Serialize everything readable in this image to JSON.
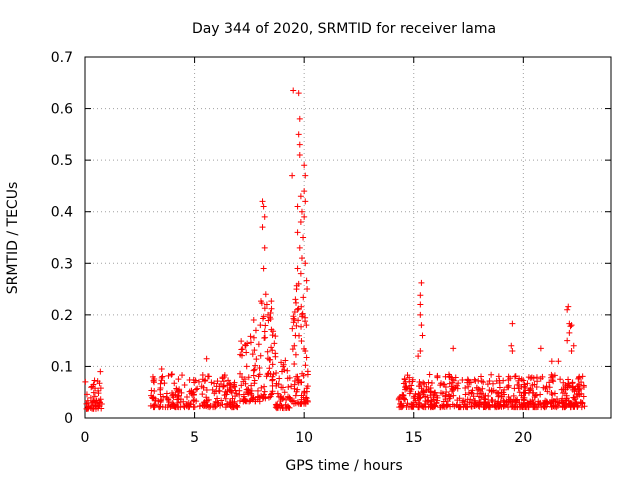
{
  "chart_data": {
    "type": "scatter",
    "title": "Day 344 of 2020, SRMTID for receiver lama",
    "xlabel": "GPS time / hours",
    "ylabel": "SRMTID / TECUs",
    "xlim": [
      0,
      24
    ],
    "ylim": [
      0,
      0.7
    ],
    "x_ticks": [
      0,
      5,
      10,
      15,
      20
    ],
    "x_tick_labels": [
      "0",
      "5",
      "10",
      "15",
      "20"
    ],
    "y_ticks": [
      0,
      0.1,
      0.2,
      0.3,
      0.4,
      0.5,
      0.6,
      0.7
    ],
    "y_tick_labels": [
      "0",
      "0.1",
      "0.2",
      "0.3",
      "0.4",
      "0.5",
      "0.6",
      "0.7"
    ],
    "grid": true,
    "marker": "+",
    "color": "#ff0000",
    "series": [
      {
        "name": "SRMTID",
        "segments": [
          {
            "x_start": 0.0,
            "x_end": 0.8,
            "base": 0.03,
            "spread": 0.035,
            "density": 60
          },
          {
            "x_start": 2.85,
            "x_end": 2.95,
            "base": 0.0,
            "spread": 0.002,
            "density": 4
          },
          {
            "x_start": 3.0,
            "x_end": 7.0,
            "base": 0.035,
            "spread": 0.04,
            "density": 55
          },
          {
            "x_start": 7.0,
            "x_end": 8.0,
            "base": 0.06,
            "spread": 0.08,
            "density": 70
          },
          {
            "x_start": 8.0,
            "x_end": 8.7,
            "base": 0.08,
            "spread": 0.12,
            "density": 80
          },
          {
            "x_start": 8.7,
            "x_end": 9.4,
            "base": 0.04,
            "spread": 0.06,
            "density": 70
          },
          {
            "x_start": 9.4,
            "x_end": 10.2,
            "base": 0.08,
            "spread": 0.15,
            "density": 90
          },
          {
            "x_start": 14.1,
            "x_end": 14.2,
            "base": 0.0,
            "spread": 0.002,
            "density": 4
          },
          {
            "x_start": 14.3,
            "x_end": 22.8,
            "base": 0.035,
            "spread": 0.04,
            "density": 70
          }
        ],
        "highlights": [
          {
            "x": 8.1,
            "y": 0.42
          },
          {
            "x": 8.15,
            "y": 0.41
          },
          {
            "x": 8.2,
            "y": 0.39
          },
          {
            "x": 8.1,
            "y": 0.37
          },
          {
            "x": 8.2,
            "y": 0.33
          },
          {
            "x": 8.15,
            "y": 0.29
          },
          {
            "x": 8.25,
            "y": 0.24
          },
          {
            "x": 8.3,
            "y": 0.22
          },
          {
            "x": 8.35,
            "y": 0.2
          },
          {
            "x": 7.7,
            "y": 0.19
          },
          {
            "x": 7.8,
            "y": 0.17
          },
          {
            "x": 8.0,
            "y": 0.18
          },
          {
            "x": 9.5,
            "y": 0.635
          },
          {
            "x": 9.75,
            "y": 0.63
          },
          {
            "x": 9.45,
            "y": 0.47
          },
          {
            "x": 9.8,
            "y": 0.58
          },
          {
            "x": 9.75,
            "y": 0.55
          },
          {
            "x": 9.8,
            "y": 0.53
          },
          {
            "x": 9.8,
            "y": 0.51
          },
          {
            "x": 10.0,
            "y": 0.49
          },
          {
            "x": 10.05,
            "y": 0.47
          },
          {
            "x": 10.0,
            "y": 0.44
          },
          {
            "x": 9.85,
            "y": 0.43
          },
          {
            "x": 10.05,
            "y": 0.42
          },
          {
            "x": 9.7,
            "y": 0.41
          },
          {
            "x": 9.9,
            "y": 0.4
          },
          {
            "x": 10.0,
            "y": 0.39
          },
          {
            "x": 9.85,
            "y": 0.38
          },
          {
            "x": 9.7,
            "y": 0.36
          },
          {
            "x": 9.95,
            "y": 0.35
          },
          {
            "x": 9.8,
            "y": 0.33
          },
          {
            "x": 9.9,
            "y": 0.31
          },
          {
            "x": 10.05,
            "y": 0.3
          },
          {
            "x": 9.7,
            "y": 0.29
          },
          {
            "x": 9.85,
            "y": 0.28
          },
          {
            "x": 9.75,
            "y": 0.26
          },
          {
            "x": 9.65,
            "y": 0.25
          },
          {
            "x": 9.6,
            "y": 0.23
          },
          {
            "x": 9.7,
            "y": 0.21
          },
          {
            "x": 9.9,
            "y": 0.2
          },
          {
            "x": 9.55,
            "y": 0.19
          },
          {
            "x": 10.1,
            "y": 0.18
          },
          {
            "x": 9.6,
            "y": 0.16
          },
          {
            "x": 9.55,
            "y": 0.14
          },
          {
            "x": 10.05,
            "y": 0.13
          },
          {
            "x": 15.35,
            "y": 0.262
          },
          {
            "x": 15.3,
            "y": 0.238
          },
          {
            "x": 15.3,
            "y": 0.22
          },
          {
            "x": 15.3,
            "y": 0.2
          },
          {
            "x": 15.35,
            "y": 0.18
          },
          {
            "x": 15.4,
            "y": 0.16
          },
          {
            "x": 15.3,
            "y": 0.13
          },
          {
            "x": 15.2,
            "y": 0.12
          },
          {
            "x": 5.55,
            "y": 0.115
          },
          {
            "x": 16.8,
            "y": 0.135
          },
          {
            "x": 19.5,
            "y": 0.183
          },
          {
            "x": 19.45,
            "y": 0.14
          },
          {
            "x": 19.5,
            "y": 0.13
          },
          {
            "x": 20.8,
            "y": 0.135
          },
          {
            "x": 21.3,
            "y": 0.11
          },
          {
            "x": 22.0,
            "y": 0.21
          },
          {
            "x": 22.05,
            "y": 0.216
          },
          {
            "x": 22.1,
            "y": 0.183
          },
          {
            "x": 22.15,
            "y": 0.178
          },
          {
            "x": 22.2,
            "y": 0.18
          },
          {
            "x": 22.1,
            "y": 0.165
          },
          {
            "x": 22.0,
            "y": 0.15
          },
          {
            "x": 22.3,
            "y": 0.14
          },
          {
            "x": 22.2,
            "y": 0.13
          },
          {
            "x": 21.6,
            "y": 0.11
          },
          {
            "x": 0.7,
            "y": 0.09
          },
          {
            "x": 3.5,
            "y": 0.095
          }
        ]
      }
    ]
  }
}
